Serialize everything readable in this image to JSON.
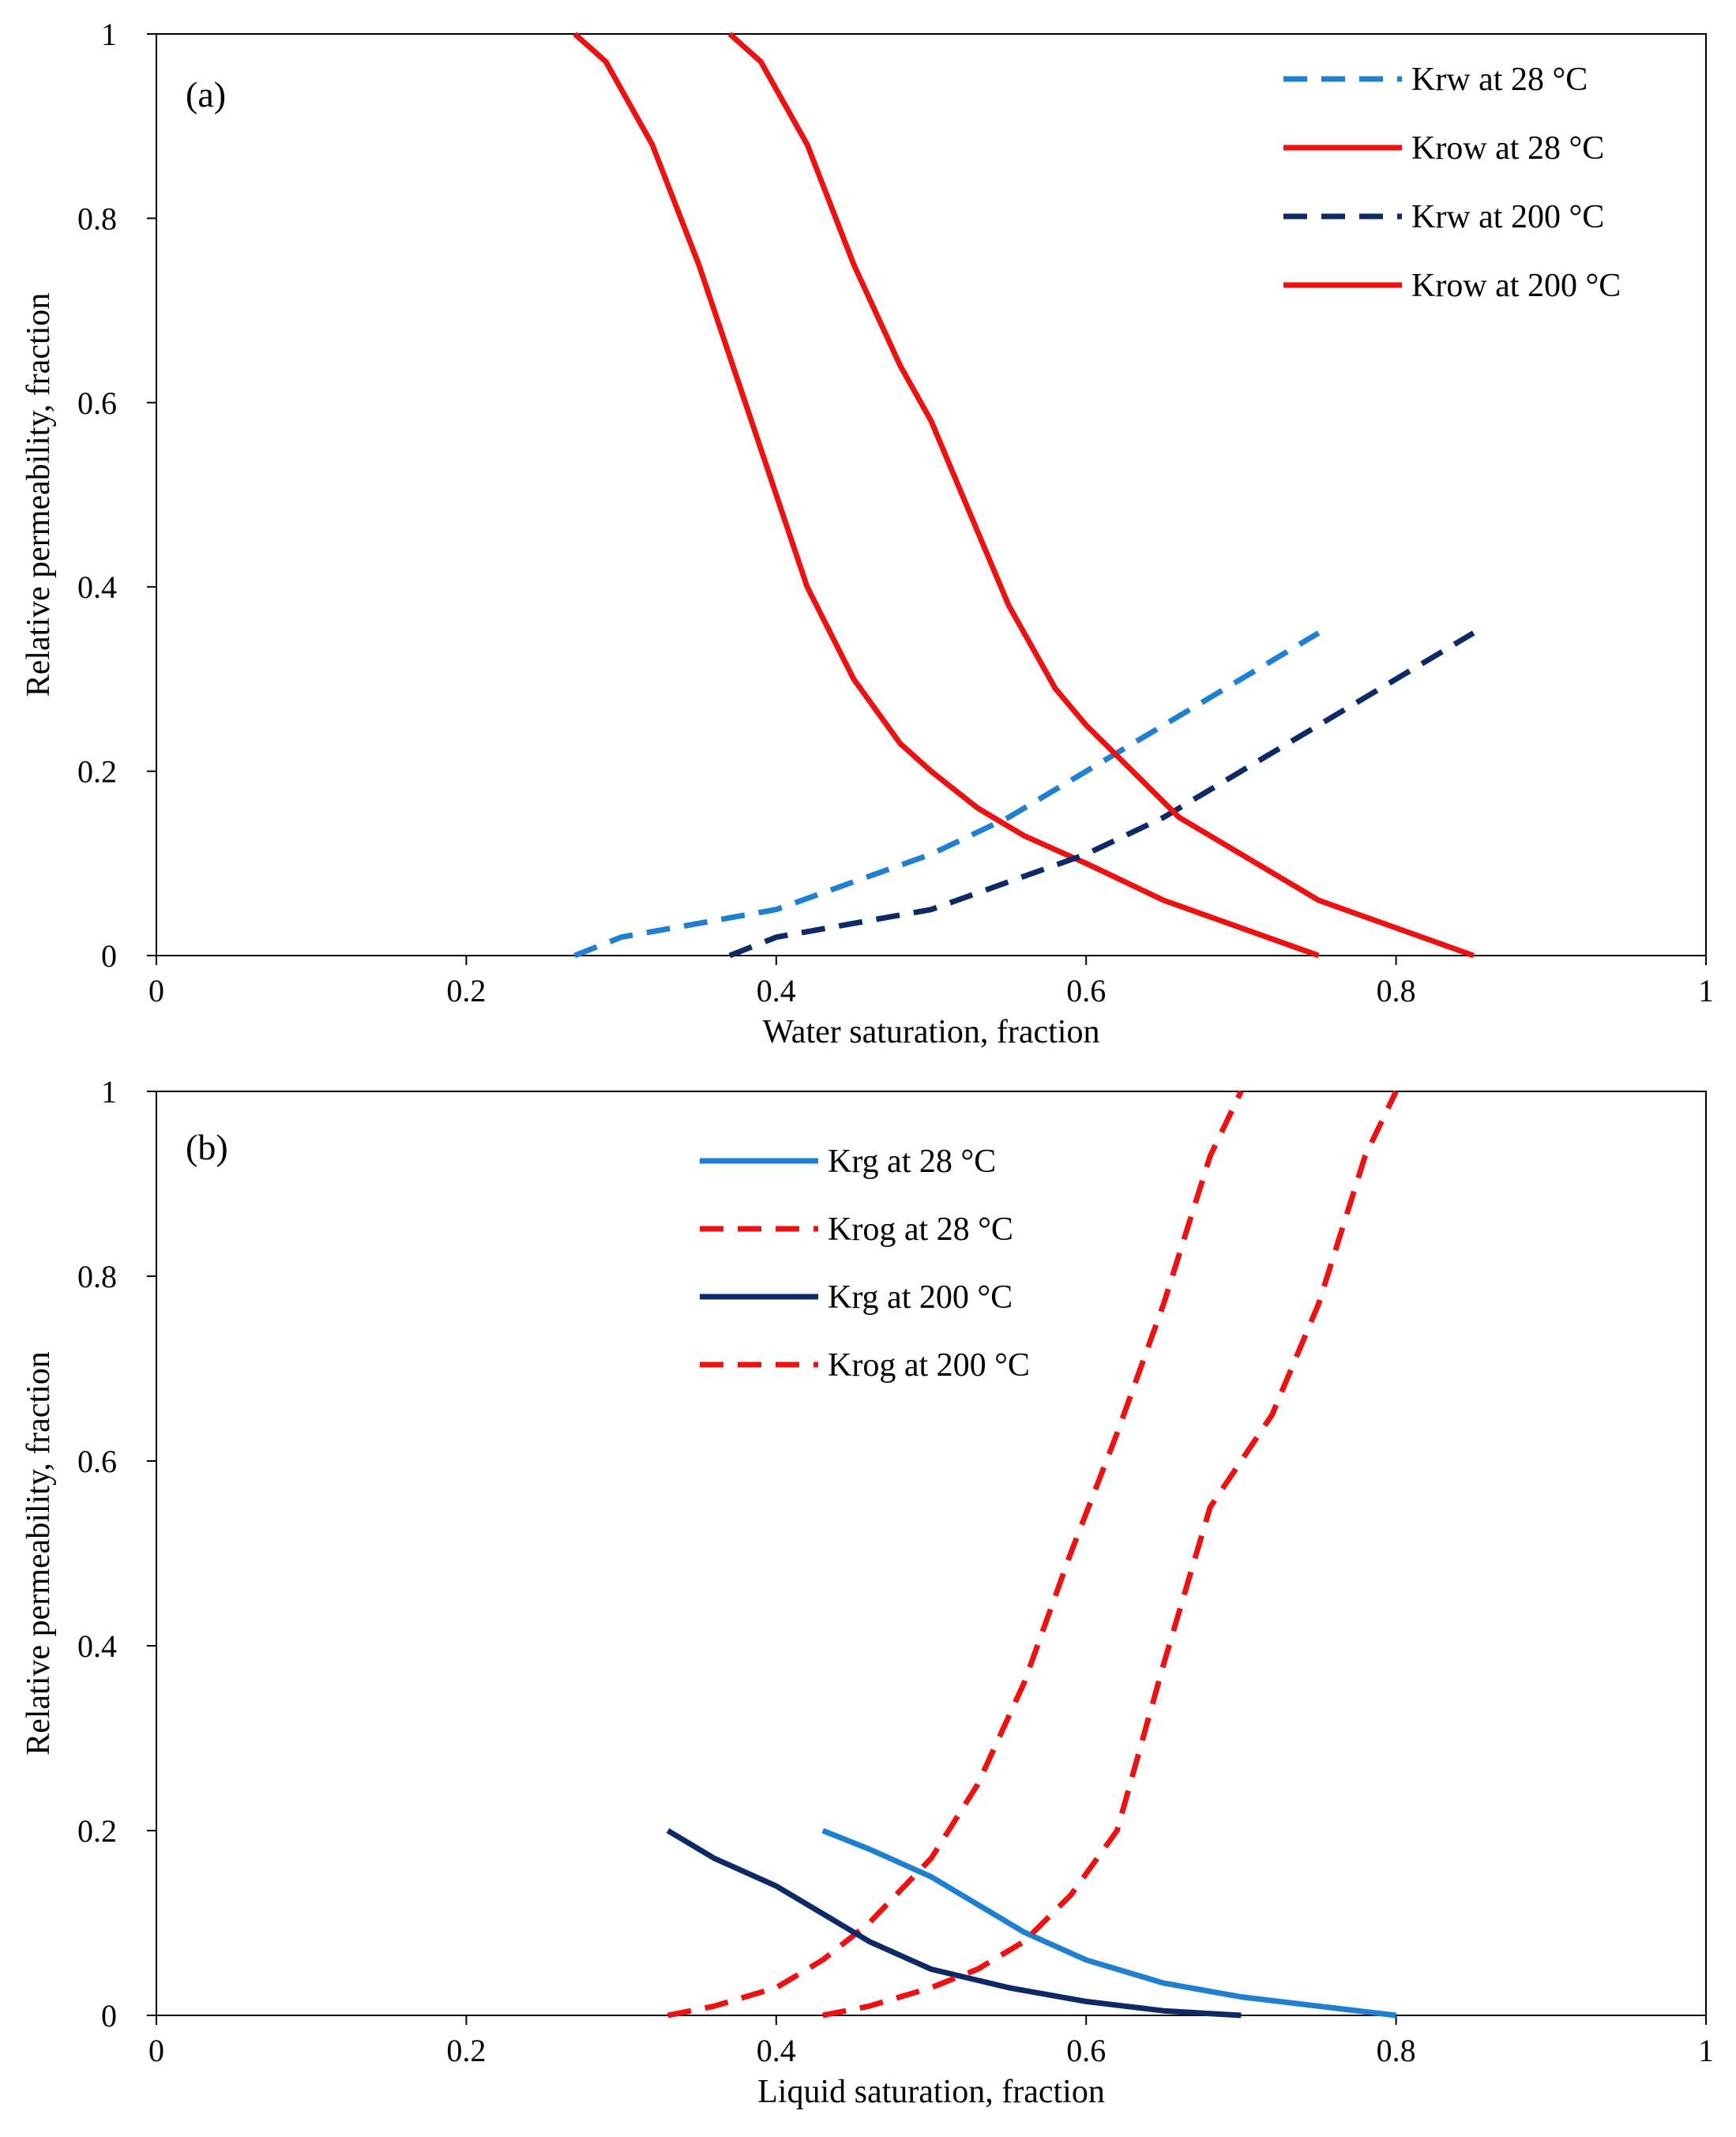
{
  "chart_data": [
    {
      "type": "line",
      "panel_label": "(a)",
      "xlabel": "Water saturation, fraction",
      "ylabel": "Relative permeability,  fraction",
      "xlim": [
        0,
        1
      ],
      "ylim": [
        0,
        1
      ],
      "x_ticks": [
        0,
        0.2,
        0.4,
        0.6,
        0.8,
        1
      ],
      "x_tick_labels": [
        "0",
        "0.2",
        "0.4",
        "0.6",
        "0.8",
        "1"
      ],
      "y_ticks": [
        0,
        0.2,
        0.4,
        0.6,
        0.8,
        1
      ],
      "y_tick_labels": [
        "0",
        "0.2",
        "0.4",
        "0.6",
        "0.8",
        "1"
      ],
      "grid": false,
      "legend_position": "top-right",
      "series": [
        {
          "name": "Krw at 28 °C",
          "color": "#1f7fd0",
          "dash": true,
          "x": [
            0.27,
            0.3,
            0.35,
            0.4,
            0.45,
            0.5,
            0.55,
            0.6,
            0.65,
            0.7,
            0.75
          ],
          "y": [
            0.0,
            0.02,
            0.035,
            0.05,
            0.08,
            0.11,
            0.15,
            0.2,
            0.25,
            0.3,
            0.35
          ]
        },
        {
          "name": "Krow at 28 °C",
          "color": "#ee1111",
          "dash": false,
          "x": [
            0.27,
            0.29,
            0.32,
            0.35,
            0.38,
            0.4,
            0.42,
            0.45,
            0.48,
            0.5,
            0.53,
            0.56,
            0.6,
            0.65,
            0.7,
            0.75
          ],
          "y": [
            1.0,
            0.97,
            0.88,
            0.75,
            0.6,
            0.5,
            0.4,
            0.3,
            0.23,
            0.2,
            0.16,
            0.13,
            0.1,
            0.06,
            0.03,
            0.0
          ]
        },
        {
          "name": "Krw at 200 °C",
          "color": "#0e2a66",
          "dash": true,
          "x": [
            0.37,
            0.4,
            0.45,
            0.5,
            0.55,
            0.6,
            0.65,
            0.7,
            0.75,
            0.8,
            0.85
          ],
          "y": [
            0.0,
            0.02,
            0.035,
            0.05,
            0.08,
            0.11,
            0.15,
            0.2,
            0.25,
            0.3,
            0.35
          ]
        },
        {
          "name": "Krow at 200 °C",
          "color": "#ee1111",
          "dash": false,
          "x": [
            0.37,
            0.39,
            0.42,
            0.45,
            0.48,
            0.5,
            0.52,
            0.55,
            0.58,
            0.6,
            0.63,
            0.66,
            0.7,
            0.75,
            0.8,
            0.85
          ],
          "y": [
            1.0,
            0.97,
            0.88,
            0.75,
            0.64,
            0.58,
            0.5,
            0.38,
            0.29,
            0.25,
            0.2,
            0.15,
            0.11,
            0.06,
            0.03,
            0.0
          ]
        }
      ]
    },
    {
      "type": "line",
      "panel_label": "(b)",
      "xlabel": "Liquid saturation, fraction",
      "ylabel": "Relative permeability,  fraction",
      "xlim": [
        0,
        1
      ],
      "ylim": [
        0,
        1
      ],
      "x_ticks": [
        0,
        0.2,
        0.4,
        0.6,
        0.8,
        1
      ],
      "x_tick_labels": [
        "0",
        "0.2",
        "0.4",
        "0.6",
        "0.8",
        "1"
      ],
      "y_ticks": [
        0,
        0.2,
        0.4,
        0.6,
        0.8,
        1
      ],
      "y_tick_labels": [
        "0",
        "0.2",
        "0.4",
        "0.6",
        "0.8",
        "1"
      ],
      "grid": false,
      "legend_position": "top-center",
      "series": [
        {
          "name": "Krg at 28 °C",
          "color": "#1f7fd0",
          "dash": false,
          "x": [
            0.43,
            0.46,
            0.5,
            0.53,
            0.56,
            0.6,
            0.65,
            0.7,
            0.75,
            0.8
          ],
          "y": [
            0.2,
            0.18,
            0.15,
            0.12,
            0.09,
            0.06,
            0.035,
            0.02,
            0.01,
            0.0
          ]
        },
        {
          "name": "Krog at 28 °C",
          "color": "#ee1111",
          "dash": true,
          "x": [
            0.33,
            0.36,
            0.4,
            0.43,
            0.46,
            0.5,
            0.53,
            0.56,
            0.59,
            0.62,
            0.65,
            0.68,
            0.7
          ],
          "y": [
            0.0,
            0.01,
            0.03,
            0.06,
            0.1,
            0.17,
            0.25,
            0.36,
            0.5,
            0.63,
            0.77,
            0.93,
            1.0
          ]
        },
        {
          "name": "Krg at 200 °C",
          "color": "#0e2a66",
          "dash": false,
          "x": [
            0.33,
            0.36,
            0.4,
            0.43,
            0.46,
            0.5,
            0.55,
            0.6,
            0.65,
            0.7
          ],
          "y": [
            0.2,
            0.17,
            0.14,
            0.11,
            0.08,
            0.05,
            0.03,
            0.015,
            0.005,
            0.0
          ]
        },
        {
          "name": "Krog at 200 °C",
          "color": "#ee1111",
          "dash": true,
          "x": [
            0.43,
            0.46,
            0.5,
            0.53,
            0.56,
            0.59,
            0.62,
            0.65,
            0.68,
            0.72,
            0.75,
            0.78,
            0.8
          ],
          "y": [
            0.0,
            0.01,
            0.03,
            0.05,
            0.08,
            0.13,
            0.2,
            0.38,
            0.55,
            0.65,
            0.77,
            0.93,
            1.0
          ]
        }
      ]
    }
  ]
}
